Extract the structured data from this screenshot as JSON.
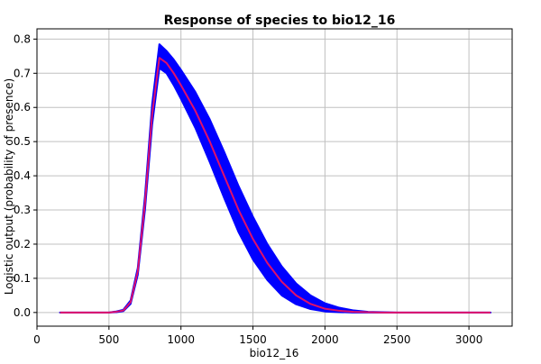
{
  "chart_data": {
    "type": "line",
    "title": "Response of species to bio12_16",
    "xlabel": "bio12_16",
    "ylabel": "Logistic output (probability of presence)",
    "xlim": [
      0,
      3300
    ],
    "ylim": [
      -0.04,
      0.83
    ],
    "xticks": [
      0,
      500,
      1000,
      1500,
      2000,
      2500,
      3000
    ],
    "yticks": [
      0.0,
      0.1,
      0.2,
      0.3,
      0.4,
      0.5,
      0.6,
      0.7,
      0.8
    ],
    "xtick_labels": [
      "0",
      "500",
      "1000",
      "1500",
      "2000",
      "2500",
      "3000"
    ],
    "ytick_labels": [
      "0.0",
      "0.1",
      "0.2",
      "0.3",
      "0.4",
      "0.5",
      "0.6",
      "0.7",
      "0.8"
    ],
    "grid": true,
    "series": [
      {
        "role": "mean",
        "color": "#e0106a",
        "x": [
          160,
          500,
          550,
          600,
          650,
          700,
          750,
          800,
          850,
          900,
          950,
          1000,
          1100,
          1200,
          1300,
          1400,
          1500,
          1600,
          1700,
          1800,
          1900,
          2000,
          2100,
          2200,
          2300,
          2400,
          2500,
          3150
        ],
        "y": [
          0.0,
          0.0,
          0.002,
          0.006,
          0.03,
          0.12,
          0.32,
          0.58,
          0.745,
          0.73,
          0.7,
          0.665,
          0.59,
          0.5,
          0.4,
          0.3,
          0.215,
          0.145,
          0.09,
          0.05,
          0.025,
          0.011,
          0.005,
          0.002,
          0.001,
          0.0,
          0.0,
          0.0
        ]
      },
      {
        "role": "upper-band",
        "color": "#0000ff",
        "x": [
          160,
          500,
          550,
          600,
          650,
          700,
          750,
          800,
          850,
          900,
          950,
          1000,
          1100,
          1200,
          1300,
          1400,
          1500,
          1600,
          1700,
          1800,
          1900,
          2000,
          2100,
          2200,
          2300,
          2400,
          2500,
          3150
        ],
        "y": [
          0.0,
          0.0,
          0.003,
          0.008,
          0.035,
          0.13,
          0.34,
          0.61,
          0.785,
          0.765,
          0.74,
          0.71,
          0.645,
          0.565,
          0.47,
          0.37,
          0.28,
          0.2,
          0.135,
          0.085,
          0.05,
          0.027,
          0.014,
          0.006,
          0.002,
          0.001,
          0.0,
          0.0
        ]
      },
      {
        "role": "lower-band",
        "color": "#0000ff",
        "x": [
          160,
          500,
          550,
          600,
          650,
          700,
          750,
          800,
          850,
          900,
          950,
          1000,
          1100,
          1200,
          1300,
          1400,
          1500,
          1600,
          1700,
          1800,
          1900,
          2000,
          2100,
          2200,
          2300,
          2400,
          2500,
          3150
        ],
        "y": [
          0.0,
          0.0,
          0.001,
          0.004,
          0.025,
          0.11,
          0.3,
          0.55,
          0.715,
          0.7,
          0.665,
          0.625,
          0.54,
          0.44,
          0.335,
          0.235,
          0.155,
          0.095,
          0.05,
          0.024,
          0.01,
          0.003,
          0.001,
          0.0,
          0.0,
          0.0,
          0.0,
          0.0
        ]
      }
    ]
  }
}
